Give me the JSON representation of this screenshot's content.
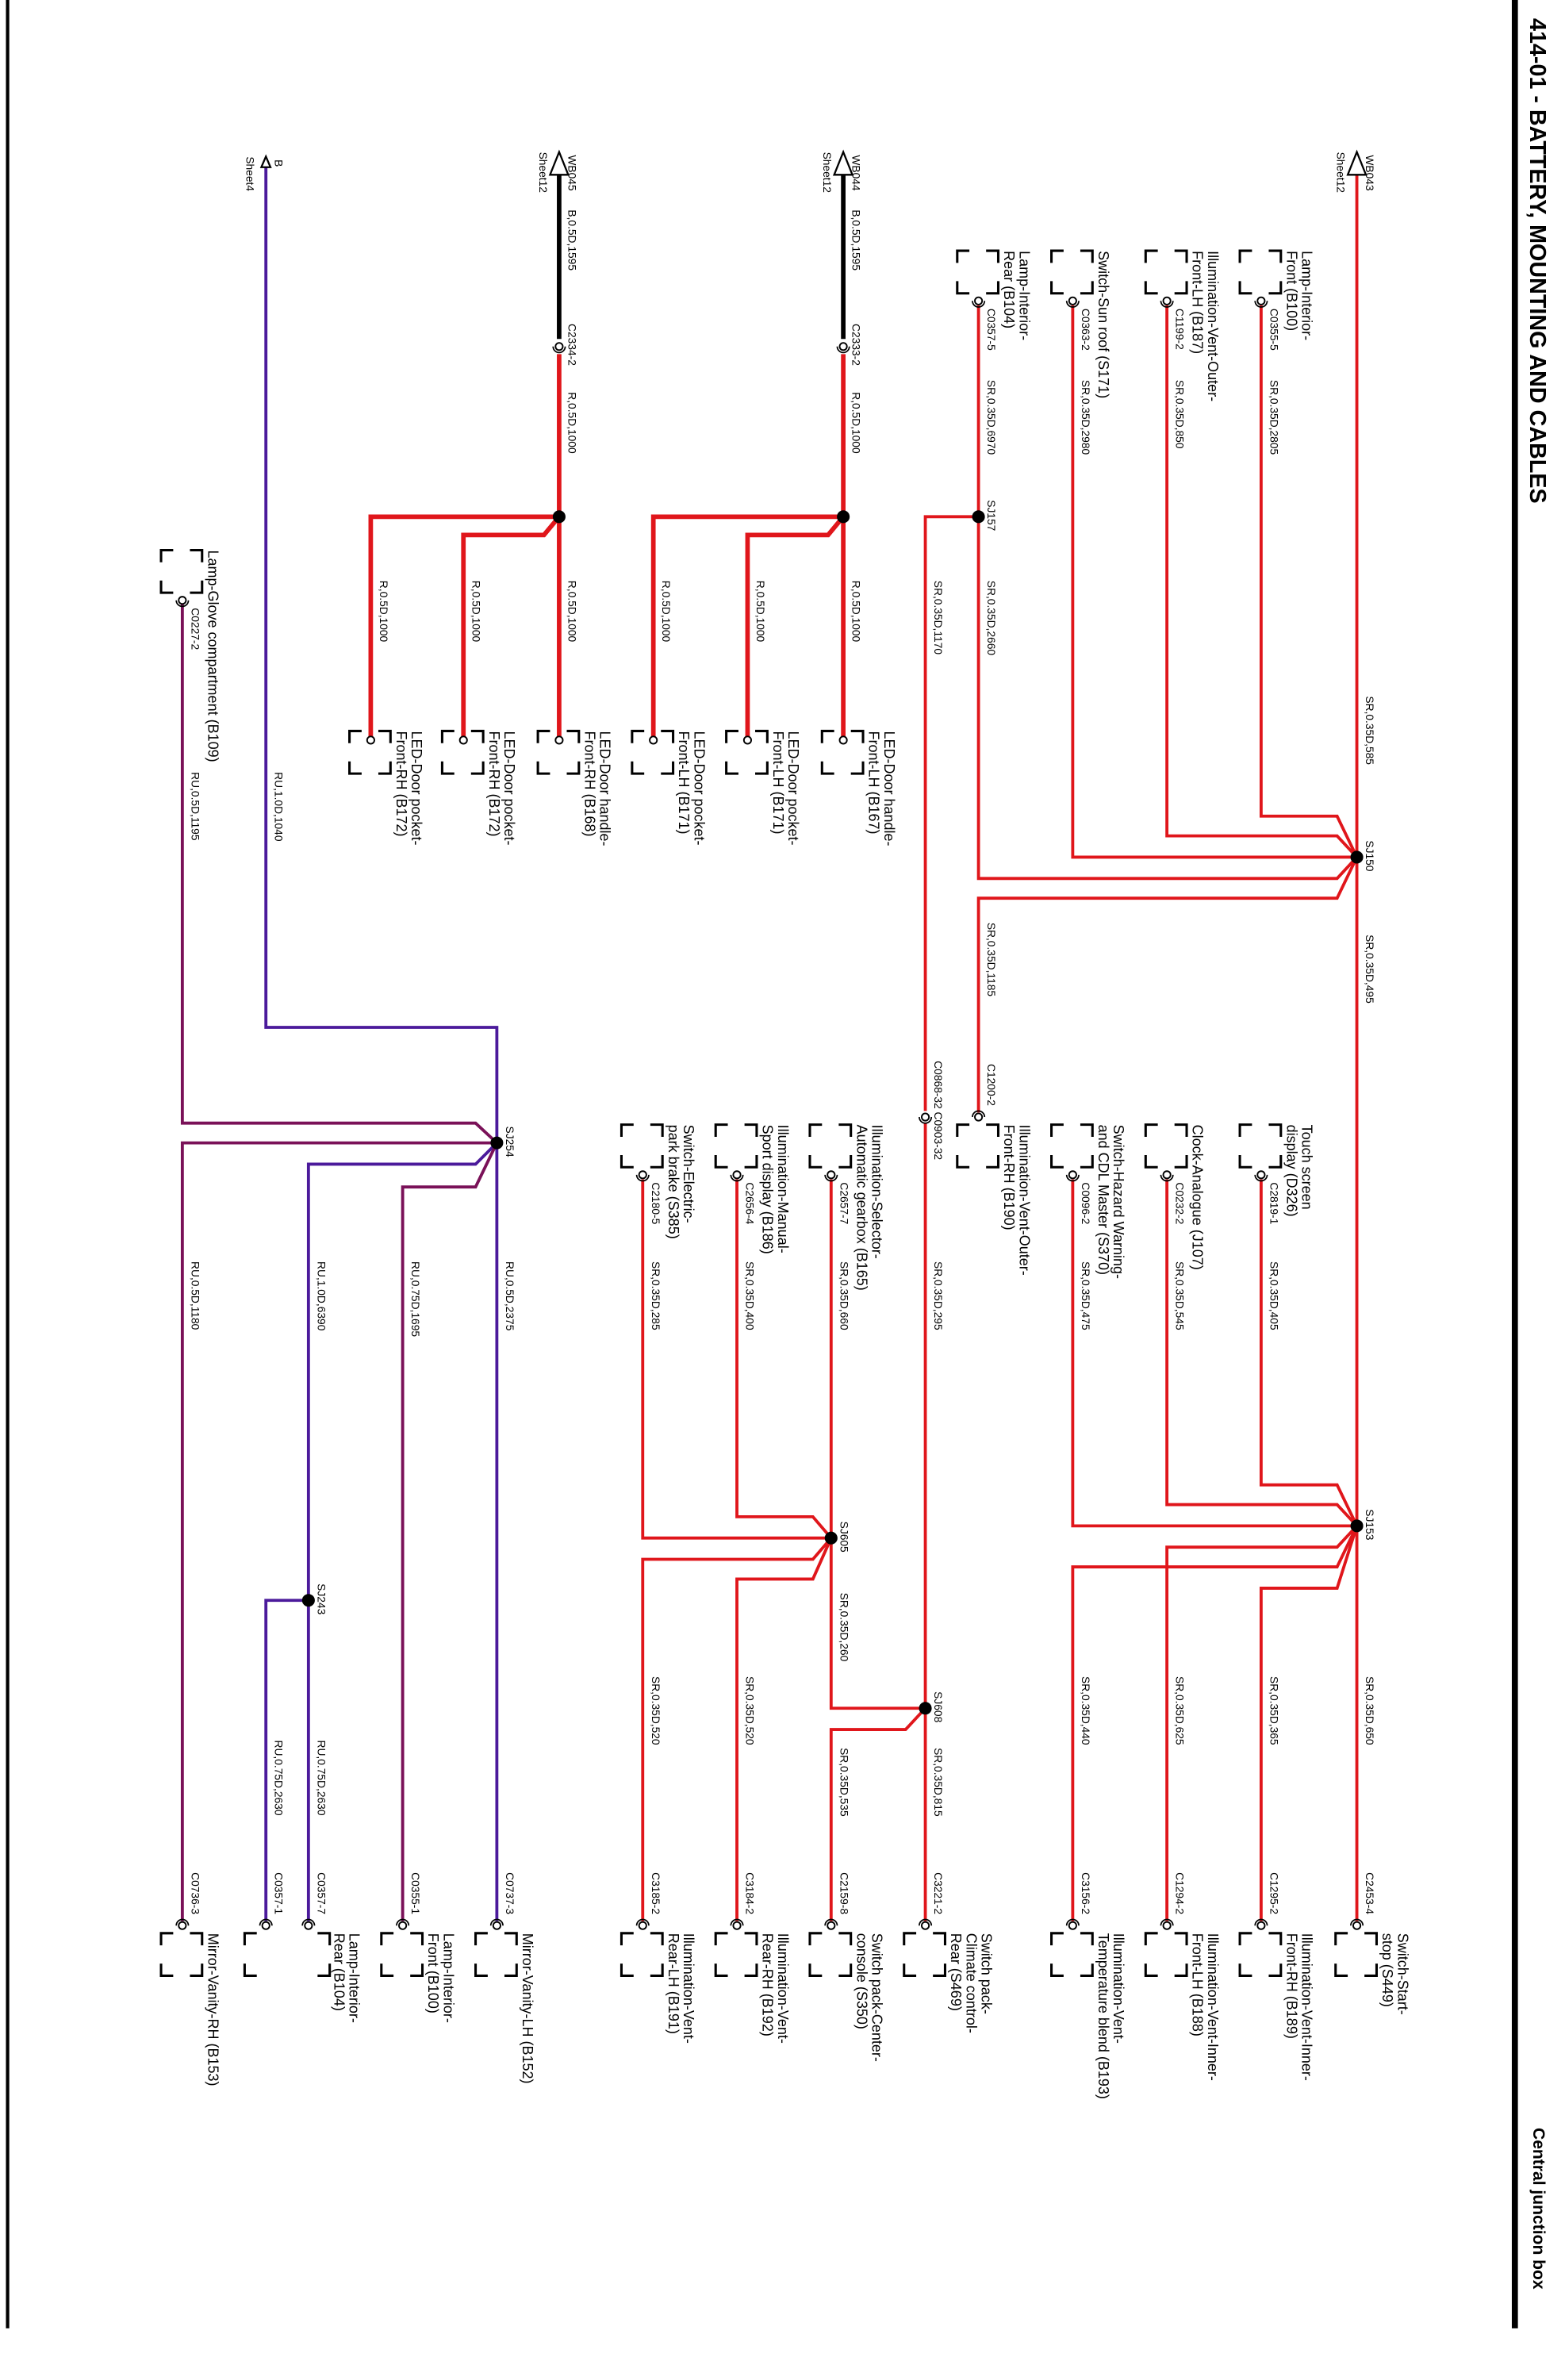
{
  "header": {
    "title": "414-01 - BATTERY, MOUNTING AND CABLES",
    "section": "Central junction box"
  },
  "colors": {
    "wire_red": "#e0161b",
    "wire_black": "#000000",
    "wire_purple": "#4b1a9b",
    "wire_maroon": "#7a1158",
    "border": "#000000"
  },
  "offsheet": [
    {
      "label": "WB043",
      "sheet": "Sheet12"
    },
    {
      "label": "WB044",
      "sheet": "Sheet12"
    },
    {
      "label": "WB045",
      "sheet": "Sheet12"
    },
    {
      "label": "B",
      "sheet": "Sheet4"
    }
  ],
  "splices": [
    "SJ150",
    "SJ153",
    "SJ157",
    "SJ605",
    "SJ608",
    "SJ254",
    "SJ243"
  ],
  "inline_connectors": [
    "C0868-32 C0903-32",
    "C2333-2",
    "C2334-2"
  ],
  "wire_labels": [
    "SR,0.35D,585",
    "SR,0.35D,495",
    "SR,0.35D,2660",
    "SR,0.35D,1170",
    "SR,0.35D,295",
    "SR,0.35D,260",
    "RU,1.0D,6390",
    "RU,1.0D,1040",
    "B,0.5D,1595",
    "R,0.5D,1000",
    "B,0.5D,1595",
    "R,0.5D,1000"
  ],
  "components": [
    {
      "name": [
        "Lamp-Interior-",
        "Front (B100)"
      ],
      "connector": "C0355-5",
      "wire": "SR,0.35D,2805"
    },
    {
      "name": [
        "Illumination-Vent-Outer-",
        "Front-LH (B187)"
      ],
      "connector": "C1199-2",
      "wire": "SR,0.35D,850"
    },
    {
      "name": [
        "Switch-Sun roof (S171)"
      ],
      "connector": "C0363-2",
      "wire": "SR,0.35D,2980"
    },
    {
      "name": [
        "Lamp-Interior-",
        "Rear (B104)"
      ],
      "connector": "C0357-5",
      "wire": "SR,0.35D,6970"
    },
    {
      "name": [
        "Touch screen",
        "display (D326)"
      ],
      "connector": "C2819-1",
      "wire": "SR,0.35D,405"
    },
    {
      "name": [
        "Clock-Analogue (J107)"
      ],
      "connector": "C0232-2",
      "wire": "SR,0.35D,545"
    },
    {
      "name": [
        "Switch-Hazard Warning-",
        "and CDL Master (S370)"
      ],
      "connector": "C0096-2",
      "wire": "SR,0.35D,475"
    },
    {
      "name": [
        "Illumination-Vent-Outer-",
        "Front-RH (B190)"
      ],
      "connector": "C1200-2",
      "wire": "SR,0.35D,1185"
    },
    {
      "name": [
        "Illumination-Selector-",
        "Automatic gearbox (B165)"
      ],
      "connector": "C2657-7",
      "wire": "SR,0.35D,660"
    },
    {
      "name": [
        "Illumination-Manual-",
        "Sport display (B186)"
      ],
      "connector": "C2656-4",
      "wire": "SR,0.35D,400"
    },
    {
      "name": [
        "Switch-Electric-",
        "park brake (S385)"
      ],
      "connector": "C2180-5",
      "wire": "SR,0.35D,285"
    },
    {
      "name": [
        "Switch-Start-",
        "stop (S449)"
      ],
      "connector": "C2453-4",
      "wire": "SR,0.35D,650"
    },
    {
      "name": [
        "Illumination-Vent-Inner-",
        "Front-RH (B189)"
      ],
      "connector": "C1295-2",
      "wire": "SR,0.35D,365"
    },
    {
      "name": [
        "Illumination-Vent-Inner-",
        "Front-LH (B188)"
      ],
      "connector": "C1294-2",
      "wire": "SR,0.35D,625"
    },
    {
      "name": [
        "Illumination-Vent-",
        "Temperature blend (B193)"
      ],
      "connector": "C3156-2",
      "wire": "SR,0.35D,440"
    },
    {
      "name": [
        "Switch pack-",
        "Climate control-",
        "Rear (S469)"
      ],
      "connector": "C3221-2",
      "wire": "SR,0.35D,815"
    },
    {
      "name": [
        "Switch pack-Center-",
        "console (S350)"
      ],
      "connector": "C2159-8",
      "wire": "SR,0.35D,535"
    },
    {
      "name": [
        "Illumination-Vent-",
        "Rear-RH (B192)"
      ],
      "connector": "C3184-2",
      "wire": "SR,0.35D,520"
    },
    {
      "name": [
        "Illumination-Vent-",
        "Rear-LH (B191)"
      ],
      "connector": "C3185-2",
      "wire": "SR,0.35D,520"
    },
    {
      "name": [
        "Mirror-Vanity-LH (B152)"
      ],
      "connector": "C0737-3",
      "wire": "RU,0.5D,2375"
    },
    {
      "name": [
        "Lamp-Interior-",
        "Front (B100)"
      ],
      "connector": "C0355-1",
      "wire": "RU,0.75D,1695"
    },
    {
      "name": [
        "Lamp-Interior-",
        "Rear (B104)"
      ],
      "connector": "C0357-7",
      "wire": "RU,0.75D,2630"
    },
    {
      "name": [],
      "connector": "C0357-1",
      "wire": "RU,0.75D,2630"
    },
    {
      "name": [
        "Mirror-Vanity-RH (B153)"
      ],
      "connector": "C0736-3",
      "wire": "RU,0.5D,1180"
    },
    {
      "name": [
        "LED-Door handle-",
        "Front-LH (B167)"
      ],
      "connector": "",
      "wire": "R,0.5D,1000"
    },
    {
      "name": [
        "LED-Door pocket-",
        "Front-LH (B171)"
      ],
      "connector": "",
      "wire": "R,0.5D,1000"
    },
    {
      "name": [
        "LED-Door pocket-",
        "Front-LH (B171)"
      ],
      "connector": "",
      "wire": "R,0.5D,1000"
    },
    {
      "name": [
        "LED-Door handle-",
        "Front-RH (B168)"
      ],
      "connector": "",
      "wire": "R,0.5D,1000"
    },
    {
      "name": [
        "LED-Door pocket-",
        "Front-RH (B172)"
      ],
      "connector": "",
      "wire": "R,0.5D,1000"
    },
    {
      "name": [
        "LED-Door pocket-",
        "Front-RH (B172)"
      ],
      "connector": "",
      "wire": "R,0.5D,1000"
    },
    {
      "name": [
        "Lamp-Glove compartment (B109)"
      ],
      "connector": "C0227-2",
      "wire": "RU,0.5D,1195"
    }
  ]
}
